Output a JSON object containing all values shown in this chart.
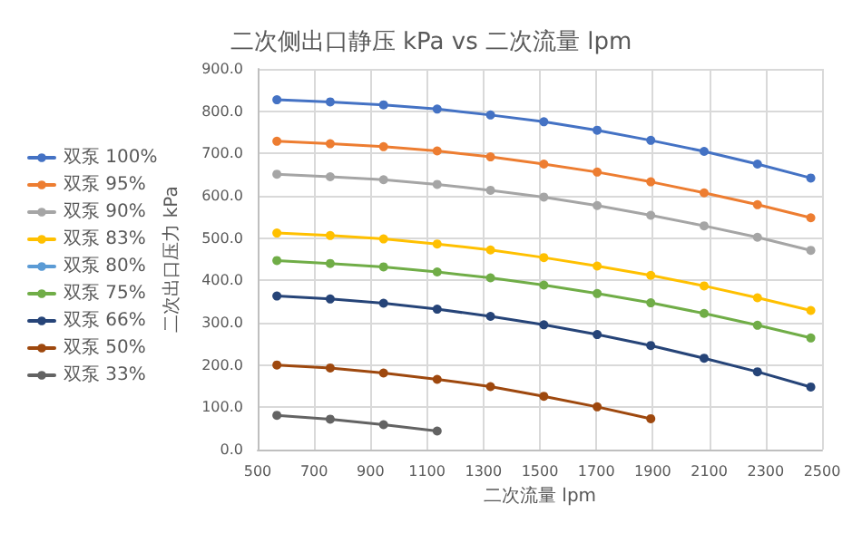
{
  "chart_data": {
    "type": "line",
    "title": "二次侧出口静压 kPa vs 二次流量 lpm",
    "xlabel": "二次流量 lpm",
    "ylabel": "二次出口压力 kPa",
    "x": [
      568,
      757,
      946,
      1136,
      1325,
      1514,
      1703,
      1893,
      2082,
      2271,
      2460
    ],
    "xlim": [
      500,
      2500
    ],
    "xticks": [
      500,
      700,
      900,
      1100,
      1300,
      1500,
      1700,
      1900,
      2100,
      2300,
      2500
    ],
    "ylim": [
      0,
      900
    ],
    "yticks": [
      {
        "value": 0,
        "label": "0.0"
      },
      {
        "value": 100,
        "label": "100.0"
      },
      {
        "value": 200,
        "label": "200.0"
      },
      {
        "value": 300,
        "label": "300.0"
      },
      {
        "value": 400,
        "label": "400.0"
      },
      {
        "value": 500,
        "label": "500.0"
      },
      {
        "value": 600,
        "label": "600.0"
      },
      {
        "value": 700,
        "label": "700.0"
      },
      {
        "value": 800,
        "label": "800.0"
      },
      {
        "value": 900,
        "label": "900.0"
      }
    ],
    "grid": true,
    "legend": "left",
    "marker": "circle",
    "line_style": "solid",
    "series": [
      {
        "name": "双泵 100%",
        "color": "#4472c4",
        "values": [
          827,
          822,
          815,
          805,
          791,
          775,
          755,
          731,
          705,
          675,
          642
        ]
      },
      {
        "name": "双泵 95%",
        "color": "#ed7d31",
        "values": [
          729,
          723,
          716,
          706,
          692,
          675,
          656,
          633,
          607,
          579,
          548
        ]
      },
      {
        "name": "双泵 90%",
        "color": "#a5a5a5",
        "values": [
          651,
          645,
          638,
          627,
          613,
          597,
          577,
          554,
          529,
          502,
          471
        ]
      },
      {
        "name": "双泵 83%",
        "color": "#ffc000",
        "values": [
          512,
          506,
          498,
          486,
          472,
          454,
          434,
          412,
          387,
          359,
          329
        ]
      },
      {
        "name": "双泵 80%",
        "color": "#5b9bd5",
        "values": [
          null,
          null,
          null,
          null,
          null,
          null,
          null,
          null,
          null,
          null,
          null
        ]
      },
      {
        "name": "双泵 75%",
        "color": "#70ad47",
        "values": [
          447,
          440,
          432,
          420,
          406,
          389,
          369,
          347,
          322,
          294,
          264
        ]
      },
      {
        "name": "双泵 66%",
        "color": "#264478",
        "values": [
          363,
          356,
          346,
          332,
          315,
          295,
          272,
          246,
          216,
          184,
          148
        ]
      },
      {
        "name": "双泵 50%",
        "color": "#9e480e",
        "values": [
          200,
          193,
          181,
          166,
          149,
          126,
          101,
          73,
          null,
          null,
          null
        ]
      },
      {
        "name": "双泵 33%",
        "color": "#636363",
        "values": [
          81,
          72,
          59,
          44,
          null,
          null,
          null,
          null,
          null,
          null,
          null
        ]
      }
    ]
  }
}
